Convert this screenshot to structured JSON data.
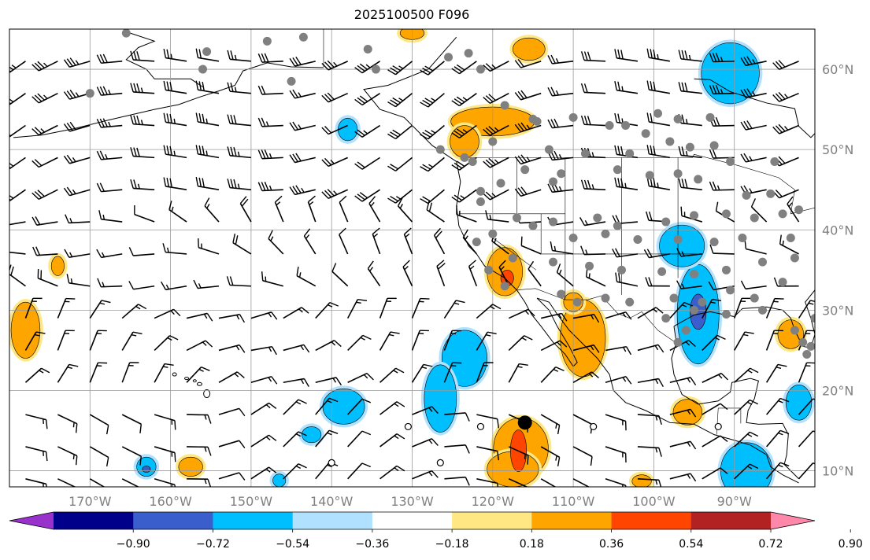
{
  "title": "2025100500 F096",
  "map": {
    "lon_range": [
      -180,
      -80
    ],
    "lat_range": [
      8,
      65
    ],
    "lon_ticks": [
      {
        "value": -170,
        "label": "170°W"
      },
      {
        "value": -160,
        "label": "160°W"
      },
      {
        "value": -150,
        "label": "150°W"
      },
      {
        "value": -140,
        "label": "140°W"
      },
      {
        "value": -130,
        "label": "130°W"
      },
      {
        "value": -120,
        "label": "120°W"
      },
      {
        "value": -110,
        "label": "110°W"
      },
      {
        "value": -100,
        "label": "100°W"
      },
      {
        "value": -90,
        "label": "90°W"
      }
    ],
    "lat_ticks": [
      {
        "value": 10,
        "label": "10°N"
      },
      {
        "value": 20,
        "label": "20°N"
      },
      {
        "value": 30,
        "label": "30°N"
      },
      {
        "value": 40,
        "label": "40°N"
      },
      {
        "value": 50,
        "label": "50°N"
      },
      {
        "value": 60,
        "label": "60°N"
      }
    ],
    "gridlines": true,
    "tick_label_color": "#808080"
  },
  "colorbar": {
    "ticks": [
      "−0.90",
      "−0.72",
      "−0.54",
      "−0.36",
      "−0.18",
      "0.18",
      "0.36",
      "0.54",
      "0.72",
      "0.90"
    ],
    "colors": [
      "#9932cc",
      "#00008b",
      "#3a5fcd",
      "#00bfff",
      "#b0e2ff",
      "#ffffff",
      "#ffe884",
      "#ffa500",
      "#ff4500",
      "#b22222",
      "#ff88aa"
    ],
    "extend": "both"
  },
  "fields": {
    "positive": [
      {
        "level": 1,
        "lon": -118.5,
        "lat": 34.8,
        "rx": 2.2,
        "ry": 3.0
      },
      {
        "level": 2,
        "lon": -118.2,
        "lat": 34.0,
        "rx": 0.8,
        "ry": 1.0
      },
      {
        "level": 1,
        "lon": -116.5,
        "lat": 12.8,
        "rx": 3.4,
        "ry": 3.8
      },
      {
        "level": 1,
        "lon": -117.5,
        "lat": 10.2,
        "rx": 3.2,
        "ry": 2.2
      },
      {
        "level": 2,
        "lon": -116.8,
        "lat": 12.5,
        "rx": 1.0,
        "ry": 2.6
      },
      {
        "level": 1,
        "lon": -108.8,
        "lat": 26.5,
        "rx": 2.8,
        "ry": 4.8
      },
      {
        "level": 1,
        "lon": -120.0,
        "lat": 53.5,
        "rx": 5.2,
        "ry": 1.8
      },
      {
        "level": 1,
        "lon": -123.5,
        "lat": 51.0,
        "rx": 1.8,
        "ry": 2.0
      },
      {
        "level": 1,
        "lon": -115.5,
        "lat": 62.5,
        "rx": 2.0,
        "ry": 1.4
      },
      {
        "level": 1,
        "lon": -130.0,
        "lat": 64.5,
        "rx": 1.5,
        "ry": 0.8
      },
      {
        "level": 1,
        "lon": -95.8,
        "lat": 17.3,
        "rx": 1.8,
        "ry": 1.6
      },
      {
        "level": 1,
        "lon": -83.0,
        "lat": 27.0,
        "rx": 1.6,
        "ry": 1.8
      },
      {
        "level": 1,
        "lon": -178.0,
        "lat": 27.5,
        "rx": 1.8,
        "ry": 3.5
      },
      {
        "level": 1,
        "lon": -174.0,
        "lat": 35.5,
        "rx": 0.8,
        "ry": 1.2
      },
      {
        "level": 1,
        "lon": -157.5,
        "lat": 10.5,
        "rx": 1.5,
        "ry": 1.2
      },
      {
        "level": 1,
        "lon": -101.5,
        "lat": 8.7,
        "rx": 1.2,
        "ry": 0.8
      },
      {
        "level": 1,
        "lon": -110.0,
        "lat": 31.0,
        "rx": 1.2,
        "ry": 1.2
      }
    ],
    "negative": [
      {
        "level": 1,
        "lon": -94.5,
        "lat": 29.5,
        "rx": 2.6,
        "ry": 6.2
      },
      {
        "level": 2,
        "lon": -94.5,
        "lat": 29.8,
        "rx": 1.0,
        "ry": 2.2
      },
      {
        "level": 1,
        "lon": -96.5,
        "lat": 38.0,
        "rx": 2.8,
        "ry": 2.6
      },
      {
        "level": 1,
        "lon": -90.5,
        "lat": 59.5,
        "rx": 3.6,
        "ry": 3.8
      },
      {
        "level": 1,
        "lon": -123.5,
        "lat": 24.0,
        "rx": 2.8,
        "ry": 3.5
      },
      {
        "level": 1,
        "lon": -126.5,
        "lat": 19.0,
        "rx": 2.0,
        "ry": 4.2
      },
      {
        "level": 1,
        "lon": -138.5,
        "lat": 18.0,
        "rx": 2.6,
        "ry": 2.2
      },
      {
        "level": 1,
        "lon": -142.5,
        "lat": 14.5,
        "rx": 1.2,
        "ry": 1.0
      },
      {
        "level": 1,
        "lon": -88.5,
        "lat": 10.0,
        "rx": 3.2,
        "ry": 3.5
      },
      {
        "level": 1,
        "lon": -82.0,
        "lat": 18.5,
        "rx": 1.6,
        "ry": 2.2
      },
      {
        "level": 1,
        "lon": -138.0,
        "lat": 52.5,
        "rx": 1.2,
        "ry": 1.4
      },
      {
        "level": 1,
        "lon": -163.0,
        "lat": 10.5,
        "rx": 1.2,
        "ry": 1.2
      },
      {
        "level": 1,
        "lon": -146.5,
        "lat": 8.8,
        "rx": 0.8,
        "ry": 0.8
      },
      {
        "level": 2,
        "lon": -163.0,
        "lat": 10.2,
        "rx": 0.5,
        "ry": 0.4
      }
    ]
  },
  "wind_barbs": {
    "lon_step": 4.0,
    "lat_step": 4.0,
    "lon_start": -178,
    "lat_start": 9,
    "color": "#000000"
  },
  "stations": {
    "gray": [
      [
        -165.5,
        64.5
      ],
      [
        -143.5,
        64
      ],
      [
        -155.5,
        62.2
      ],
      [
        -148,
        63.5
      ],
      [
        -135.5,
        62.5
      ],
      [
        -125.5,
        61.5
      ],
      [
        -123,
        62
      ],
      [
        -121.5,
        60
      ],
      [
        -134.5,
        60
      ],
      [
        -145,
        58.5
      ],
      [
        -156,
        60
      ],
      [
        -170,
        57
      ],
      [
        -118.5,
        55.5
      ],
      [
        -115,
        53.8
      ],
      [
        -114.5,
        53.5
      ],
      [
        -110,
        54
      ],
      [
        -105.5,
        53
      ],
      [
        -103.5,
        53
      ],
      [
        -101,
        52
      ],
      [
        -98,
        51
      ],
      [
        -95.5,
        50.3
      ],
      [
        -92.5,
        50.5
      ],
      [
        -97,
        53.8
      ],
      [
        -99.5,
        54.5
      ],
      [
        -93,
        54
      ],
      [
        -90.5,
        48.5
      ],
      [
        -85,
        48.5
      ],
      [
        -120,
        51
      ],
      [
        -113,
        50
      ],
      [
        -108.5,
        49.5
      ],
      [
        -103,
        49.5
      ],
      [
        -126.5,
        50
      ],
      [
        -123.5,
        49
      ],
      [
        -122.5,
        48.5
      ],
      [
        -121.5,
        44.8
      ],
      [
        -119,
        45.8
      ],
      [
        -116,
        47.5
      ],
      [
        -112.5,
        46
      ],
      [
        -111.5,
        47
      ],
      [
        -104.5,
        47.5
      ],
      [
        -100.5,
        46.8
      ],
      [
        -97,
        47
      ],
      [
        -94.5,
        46.3
      ],
      [
        -88.5,
        44.3
      ],
      [
        -85.5,
        44.5
      ],
      [
        -82,
        42.5
      ],
      [
        -121.5,
        43.5
      ],
      [
        -117,
        41.5
      ],
      [
        -112.5,
        41
      ],
      [
        -107,
        41.5
      ],
      [
        -104.5,
        40.5
      ],
      [
        -98.5,
        41
      ],
      [
        -95,
        41.8
      ],
      [
        -91,
        42
      ],
      [
        -87.5,
        41.5
      ],
      [
        -84,
        42
      ],
      [
        -120,
        39.5
      ],
      [
        -115,
        40.5
      ],
      [
        -110,
        39
      ],
      [
        -106,
        39.5
      ],
      [
        -102,
        38.8
      ],
      [
        -97,
        38.8
      ],
      [
        -92.5,
        38.5
      ],
      [
        -89,
        39
      ],
      [
        -83,
        39
      ],
      [
        -122,
        38.5
      ],
      [
        -117.5,
        36.5
      ],
      [
        -112.5,
        36
      ],
      [
        -108,
        35.5
      ],
      [
        -104,
        35
      ],
      [
        -99,
        34.8
      ],
      [
        -95,
        34.5
      ],
      [
        -91,
        35
      ],
      [
        -86.5,
        36
      ],
      [
        -82.5,
        36.5
      ],
      [
        -120.5,
        35
      ],
      [
        -118.5,
        33
      ],
      [
        -111.5,
        32
      ],
      [
        -106,
        31.5
      ],
      [
        -103,
        31
      ],
      [
        -97.5,
        31.5
      ],
      [
        -94,
        31
      ],
      [
        -90.5,
        32.5
      ],
      [
        -87.5,
        31.5
      ],
      [
        -84,
        33.5
      ],
      [
        -109.5,
        31
      ],
      [
        -98.5,
        29
      ],
      [
        -95,
        30
      ],
      [
        -91,
        29.5
      ],
      [
        -86.5,
        30
      ],
      [
        -96,
        27.5
      ],
      [
        -97,
        26
      ],
      [
        -81.5,
        26
      ],
      [
        -81,
        24.5
      ],
      [
        -82.5,
        27.5
      ],
      [
        -80.5,
        25.5
      ],
      [
        -80,
        29
      ]
    ],
    "hollow": [
      [
        -130.5,
        15.5
      ],
      [
        -126.5,
        11
      ],
      [
        -121.5,
        15.5
      ],
      [
        -107.5,
        15.5
      ],
      [
        -140,
        11
      ],
      [
        -92,
        15.5
      ]
    ],
    "highlight": [
      -116,
      16
    ]
  }
}
